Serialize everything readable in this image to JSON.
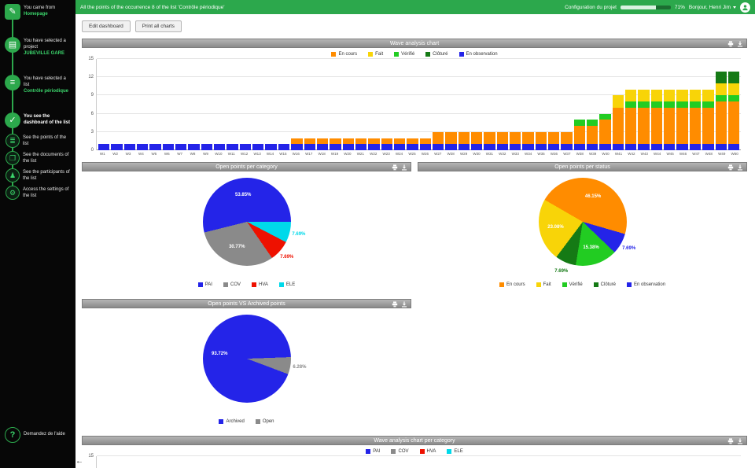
{
  "sidebar": {
    "items": [
      {
        "glyph": "✎",
        "line1": "You came from",
        "line2": "Homepage"
      },
      {
        "glyph": "▤",
        "line1": "You have selected a project",
        "line2": "JUBEVILLE GARE"
      },
      {
        "glyph": "≡",
        "line1": "You have selected a list",
        "line2": "Contrôle périodique"
      },
      {
        "glyph": "✓",
        "line1": "You see the dashboard of the list",
        "line2": ""
      },
      {
        "glyph": "≣",
        "line1": "See the points of the list",
        "line2": ""
      },
      {
        "glyph": "❐",
        "line1": "See the documents of the list",
        "line2": ""
      },
      {
        "glyph": "♟",
        "line1": "See the participants of the list",
        "line2": ""
      },
      {
        "glyph": "⚙",
        "line1": "Access the settings of the list",
        "line2": ""
      }
    ],
    "help": {
      "glyph": "?",
      "label": "Demandez de l'aide"
    },
    "back_arrow": "←"
  },
  "topbar": {
    "title": "All the points of the occurrence 8 of the list 'Contrôle périodique'",
    "config_label": "Configuration du projet",
    "config_value": 71,
    "config_percent": "71%",
    "greeting": "Bonjour, Henri Jim"
  },
  "toolbar": {
    "edit_dashboard": "Edit dashboard",
    "print_all": "Print all charts"
  },
  "chart_data": [
    {
      "type": "bar",
      "stacked": true,
      "title": "Wave analysis chart",
      "ylim": [
        0,
        15
      ],
      "yticks": [
        0,
        3,
        6,
        9,
        12,
        15
      ],
      "categories": [
        "W1",
        "W2",
        "W3",
        "W4",
        "W5",
        "W6",
        "W7",
        "W8",
        "W9",
        "W10",
        "W11",
        "W12",
        "W13",
        "W14",
        "W15",
        "W16",
        "W17",
        "W18",
        "W19",
        "W20",
        "W21",
        "W22",
        "W23",
        "W24",
        "W25",
        "W26",
        "W27",
        "W28",
        "W29",
        "W30",
        "W31",
        "W32",
        "W33",
        "W34",
        "W35",
        "W36",
        "W37",
        "W38",
        "W39",
        "W40",
        "W41",
        "W42",
        "W43",
        "W44",
        "W45",
        "W46",
        "W47",
        "W48",
        "W49",
        "W50"
      ],
      "series": [
        {
          "name": "En observation",
          "color": "#2424e8",
          "values": [
            1,
            1,
            1,
            1,
            1,
            1,
            1,
            1,
            1,
            1,
            1,
            1,
            1,
            1,
            1,
            1,
            1,
            1,
            1,
            1,
            1,
            1,
            1,
            1,
            1,
            1,
            1,
            1,
            1,
            1,
            1,
            1,
            1,
            1,
            1,
            1,
            1,
            1,
            1,
            1,
            1,
            1,
            1,
            1,
            1,
            1,
            1,
            1,
            1,
            1
          ]
        },
        {
          "name": "En cours",
          "color": "#ff8c00",
          "values": [
            0,
            0,
            0,
            0,
            0,
            0,
            0,
            0,
            0,
            0,
            0,
            0,
            0,
            0,
            0,
            1,
            1,
            1,
            1,
            1,
            1,
            1,
            1,
            1,
            1,
            1,
            2,
            2,
            2,
            2,
            2,
            2,
            2,
            2,
            2,
            2,
            2,
            3,
            3,
            4,
            6,
            6,
            6,
            6,
            6,
            6,
            6,
            6,
            7,
            7
          ]
        },
        {
          "name": "Vérifié",
          "color": "#22cc22",
          "values": [
            0,
            0,
            0,
            0,
            0,
            0,
            0,
            0,
            0,
            0,
            0,
            0,
            0,
            0,
            0,
            0,
            0,
            0,
            0,
            0,
            0,
            0,
            0,
            0,
            0,
            0,
            0,
            0,
            0,
            0,
            0,
            0,
            0,
            0,
            0,
            0,
            0,
            1,
            1,
            1,
            0,
            1,
            1,
            1,
            1,
            1,
            1,
            1,
            1,
            1
          ]
        },
        {
          "name": "Fait",
          "color": "#f8d408",
          "values": [
            0,
            0,
            0,
            0,
            0,
            0,
            0,
            0,
            0,
            0,
            0,
            0,
            0,
            0,
            0,
            0,
            0,
            0,
            0,
            0,
            0,
            0,
            0,
            0,
            0,
            0,
            0,
            0,
            0,
            0,
            0,
            0,
            0,
            0,
            0,
            0,
            0,
            0,
            0,
            0,
            2,
            2,
            2,
            2,
            2,
            2,
            2,
            2,
            2,
            2
          ]
        },
        {
          "name": "Clôturé",
          "color": "#157a15",
          "values": [
            0,
            0,
            0,
            0,
            0,
            0,
            0,
            0,
            0,
            0,
            0,
            0,
            0,
            0,
            0,
            0,
            0,
            0,
            0,
            0,
            0,
            0,
            0,
            0,
            0,
            0,
            0,
            0,
            0,
            0,
            0,
            0,
            0,
            0,
            0,
            0,
            0,
            0,
            0,
            0,
            0,
            0,
            0,
            0,
            0,
            0,
            0,
            0,
            2,
            2
          ]
        }
      ],
      "legend": [
        {
          "label": "En cours",
          "color": "#ff8c00"
        },
        {
          "label": "Fait",
          "color": "#f8d408"
        },
        {
          "label": "Vérifié",
          "color": "#22cc22"
        },
        {
          "label": "Clôturé",
          "color": "#157a15"
        },
        {
          "label": "En observation",
          "color": "#2424e8"
        }
      ]
    },
    {
      "type": "pie",
      "title": "Open points per category",
      "rotation_deg": 256,
      "slices": [
        {
          "label": "PAI",
          "value": 53.85,
          "color": "#2424e8",
          "text": "53.85%"
        },
        {
          "label": "ELE",
          "value": 7.69,
          "color": "#00d9ea",
          "text": "7.69%"
        },
        {
          "label": "HVA",
          "value": 7.69,
          "color": "#ee1100",
          "text": "7.69%"
        },
        {
          "label": "COV",
          "value": 30.77,
          "color": "#8a8a8a",
          "text": "30.77%"
        }
      ],
      "legend": [
        {
          "label": "PAI",
          "color": "#2424e8"
        },
        {
          "label": "COV",
          "color": "#8a8a8a"
        },
        {
          "label": "HVA",
          "color": "#ee1100"
        },
        {
          "label": "ELE",
          "color": "#00d9ea"
        }
      ]
    },
    {
      "type": "pie",
      "title": "Open points per status",
      "rotation_deg": 300,
      "slices": [
        {
          "label": "En cours",
          "value": 46.15,
          "color": "#ff8c00",
          "text": "46.15%"
        },
        {
          "label": "En observation",
          "value": 7.69,
          "color": "#2424e8",
          "text": "7.69%"
        },
        {
          "label": "Vérifié",
          "value": 15.38,
          "color": "#22cc22",
          "text": "15.38%"
        },
        {
          "label": "Clôturé",
          "value": 7.69,
          "color": "#157a15",
          "text": "7.69%"
        },
        {
          "label": "Fait",
          "value": 23.08,
          "color": "#f8d408",
          "text": "23.08%"
        }
      ],
      "legend": [
        {
          "label": "En cours",
          "color": "#ff8c00"
        },
        {
          "label": "Fait",
          "color": "#f8d408"
        },
        {
          "label": "Vérifié",
          "color": "#22cc22"
        },
        {
          "label": "Clôturé",
          "color": "#157a15"
        },
        {
          "label": "En observation",
          "color": "#2424e8"
        }
      ]
    },
    {
      "type": "pie",
      "title": "Open points VS Archived points",
      "rotation_deg": 88,
      "slices": [
        {
          "label": "Open",
          "value": 6.28,
          "color": "#8a8a8a",
          "text": "6.28%"
        },
        {
          "label": "Archived",
          "value": 93.72,
          "color": "#2424e8",
          "text": "93.72%"
        }
      ],
      "legend": [
        {
          "label": "Archived",
          "color": "#2424e8"
        },
        {
          "label": "Open",
          "color": "#8a8a8a"
        }
      ]
    },
    {
      "type": "bar",
      "stacked": true,
      "title": "Wave analysis chart per category",
      "ylim": [
        0,
        15
      ],
      "yticks": [
        15
      ],
      "categories": [],
      "series": [],
      "legend": [
        {
          "label": "PAI",
          "color": "#2424e8"
        },
        {
          "label": "COV",
          "color": "#8a8a8a"
        },
        {
          "label": "HVA",
          "color": "#ee1100"
        },
        {
          "label": "ELE",
          "color": "#00d9ea"
        }
      ]
    }
  ]
}
